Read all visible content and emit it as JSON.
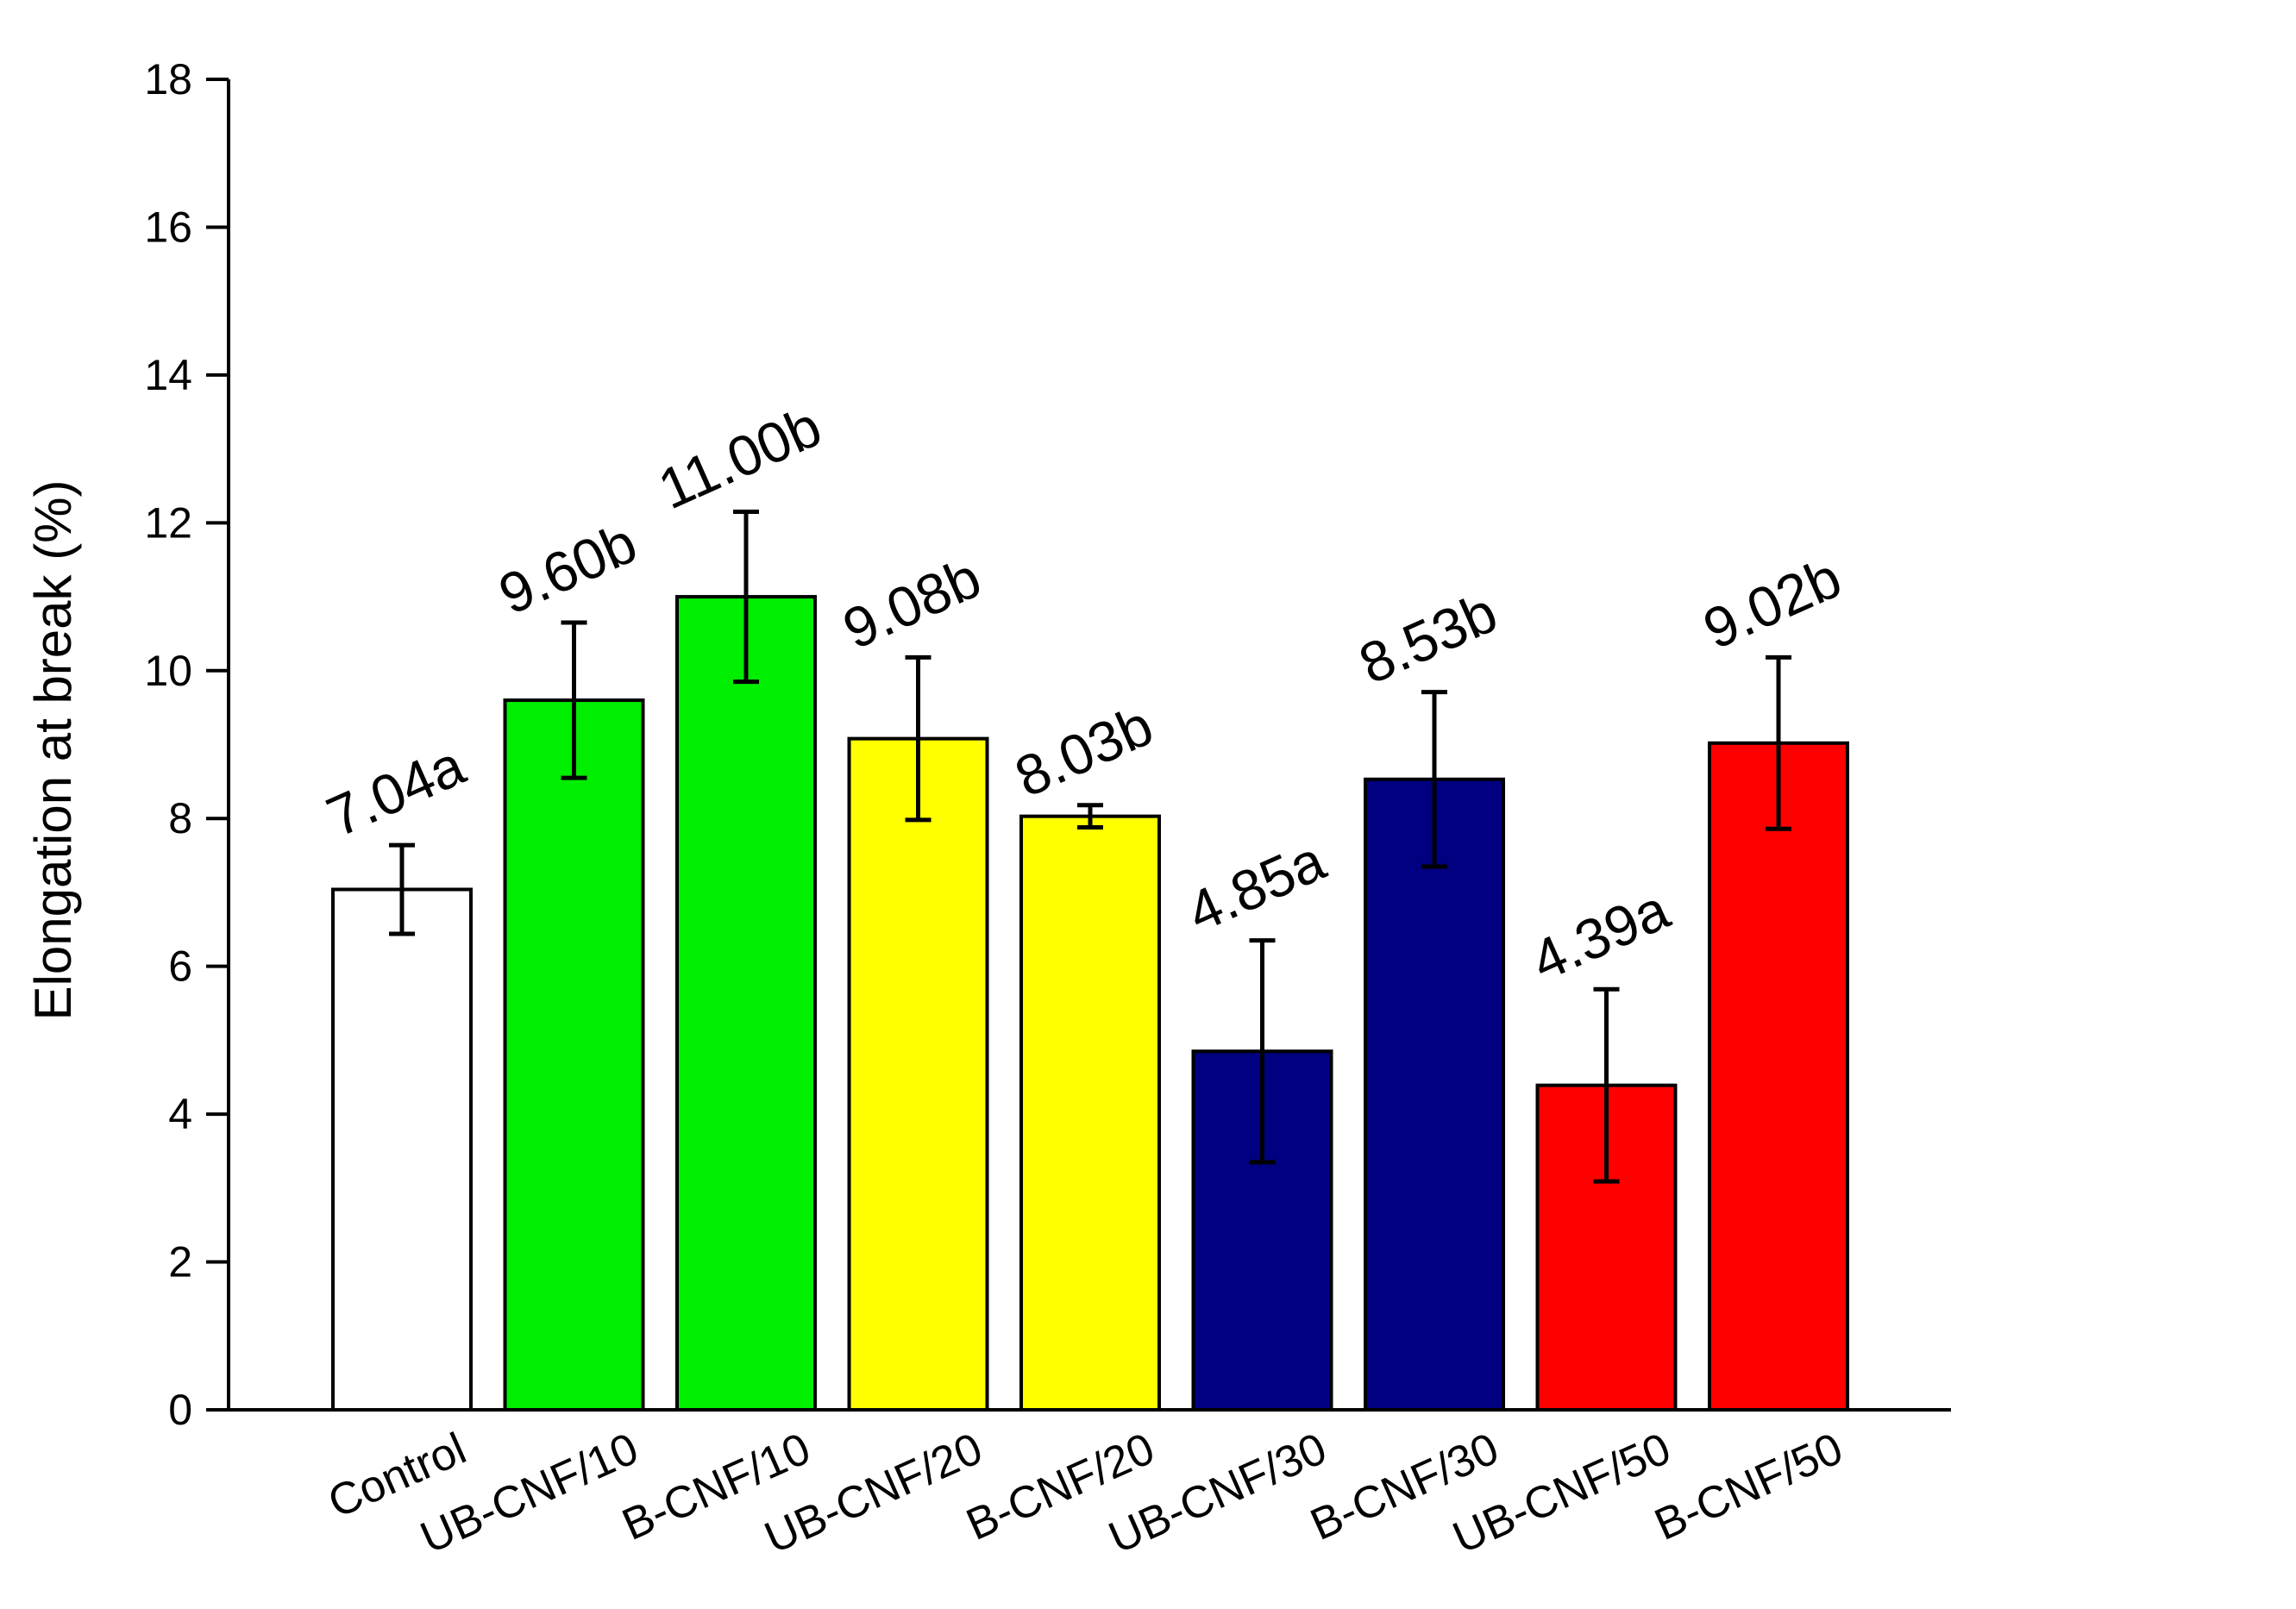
{
  "chart_data": {
    "type": "bar",
    "title": "",
    "xlabel": "",
    "ylabel": "Elongation at break (%)",
    "ylim": [
      0,
      18
    ],
    "yticks": [
      0,
      2,
      4,
      6,
      8,
      10,
      12,
      14,
      16,
      18
    ],
    "grid": false,
    "legend": "none",
    "categories": [
      "Control",
      "UB-CNF/10",
      "B-CNF/10",
      "UB-CNF/20",
      "B-CNF/20",
      "UB-CNF/30",
      "B-CNF/30",
      "UB-CNF/50",
      "B-CNF/50"
    ],
    "values": [
      7.04,
      9.6,
      11.0,
      9.08,
      8.03,
      4.85,
      8.53,
      4.39,
      9.02
    ],
    "errors": [
      0.6,
      1.05,
      1.15,
      1.1,
      0.15,
      1.5,
      1.18,
      1.3,
      1.16
    ],
    "labels": [
      "7.04a",
      "9.60b",
      "11.00b",
      "9.08b",
      "8.03b",
      "4.85a",
      "8.53b",
      "4.39a",
      "9.02b"
    ],
    "colors": [
      "#ffffff",
      "#00ee00",
      "#00ee00",
      "#ffff00",
      "#ffff00",
      "#000080",
      "#000080",
      "#ff0000",
      "#ff0000"
    ]
  }
}
